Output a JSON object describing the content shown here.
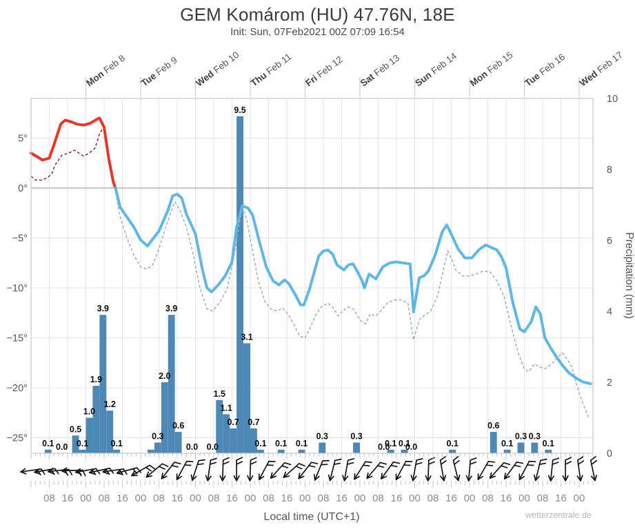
{
  "header": {
    "title": "GEM Komárom (HU) 47.76N, 18E",
    "subtitle": "Init: Sun, 07Feb2021 00Z 07:09 16:54"
  },
  "watermark": "wetterzentrale.de",
  "chart_data": {
    "type": "line",
    "title": "GEM meteogram Komárom (HU)",
    "x_axis": {
      "label": "Local time (UTC+1)",
      "start": "Sun Feb 7 00:00",
      "hours_total": 246,
      "hour_tick_step": 8,
      "tick_label_cycle": [
        "08",
        "16",
        "00"
      ],
      "day_labels": [
        {
          "day": "Mon",
          "date": "Feb 8"
        },
        {
          "day": "Tue",
          "date": "Feb 9"
        },
        {
          "day": "Wed",
          "date": "Feb 10"
        },
        {
          "day": "Thu",
          "date": "Feb 11"
        },
        {
          "day": "Fri",
          "date": "Feb 12"
        },
        {
          "day": "Sat",
          "date": "Feb 13"
        },
        {
          "day": "Sun",
          "date": "Feb 14"
        },
        {
          "day": "Mon",
          "date": "Feb 15"
        },
        {
          "day": "Tue",
          "date": "Feb 16"
        },
        {
          "day": "Wed",
          "date": "Feb 17"
        }
      ]
    },
    "y_left": {
      "unit": "°C",
      "ticks": [
        {
          "v": 5,
          "label": "5°"
        },
        {
          "v": 0,
          "label": "0°"
        },
        {
          "v": -5,
          "label": "−5°"
        },
        {
          "v": -10,
          "label": "−10°"
        },
        {
          "v": -15,
          "label": "−15°"
        },
        {
          "v": -20,
          "label": "−20°"
        },
        {
          "v": -25,
          "label": "−25°"
        }
      ]
    },
    "y_right": {
      "label": "Precipitation (mm)",
      "unit": "mm",
      "ticks": [
        {
          "v": 0,
          "label": "0"
        },
        {
          "v": 2,
          "label": "2"
        },
        {
          "v": 4,
          "label": "4"
        },
        {
          "v": 6,
          "label": "6"
        },
        {
          "v": 8,
          "label": "8"
        },
        {
          "v": 10,
          "label": "10"
        }
      ],
      "range": [
        0,
        10
      ]
    },
    "series": [
      {
        "name": "temperature_2m",
        "unit": "°C",
        "style": "solid",
        "split_at_c": 0,
        "points": [
          [
            0,
            3.5
          ],
          [
            3,
            3.1
          ],
          [
            5,
            2.8
          ],
          [
            8,
            3.0
          ],
          [
            10,
            4.3
          ],
          [
            13,
            6.4
          ],
          [
            15,
            6.8
          ],
          [
            18,
            6.6
          ],
          [
            20,
            6.4
          ],
          [
            23,
            6.3
          ],
          [
            26,
            6.5
          ],
          [
            29,
            6.9
          ],
          [
            30,
            7.0
          ],
          [
            32,
            6.1
          ],
          [
            34,
            3.0
          ],
          [
            36,
            0.6
          ],
          [
            37,
            0.0
          ],
          [
            39,
            -1.9
          ],
          [
            42,
            -2.9
          ],
          [
            45,
            -3.9
          ],
          [
            48,
            -5.2
          ],
          [
            51,
            -5.8
          ],
          [
            53,
            -5.2
          ],
          [
            56,
            -4.3
          ],
          [
            60,
            -2.2
          ],
          [
            62,
            -0.8
          ],
          [
            64,
            -0.6
          ],
          [
            66,
            -1.0
          ],
          [
            68,
            -2.6
          ],
          [
            72,
            -4.6
          ],
          [
            75,
            -8.1
          ],
          [
            77,
            -10.0
          ],
          [
            79,
            -10.4
          ],
          [
            82,
            -9.7
          ],
          [
            85,
            -8.8
          ],
          [
            88,
            -7.4
          ],
          [
            90,
            -3.9
          ],
          [
            92.5,
            -1.8
          ],
          [
            95,
            -2.0
          ],
          [
            97,
            -2.7
          ],
          [
            100,
            -5.4
          ],
          [
            103,
            -7.9
          ],
          [
            106,
            -9.3
          ],
          [
            108.5,
            -9.7
          ],
          [
            111,
            -9.2
          ],
          [
            113,
            -9.6
          ],
          [
            116,
            -10.8
          ],
          [
            118,
            -11.7
          ],
          [
            119.5,
            -11.7
          ],
          [
            122,
            -10.1
          ],
          [
            124,
            -8.4
          ],
          [
            126,
            -6.8
          ],
          [
            128,
            -6.3
          ],
          [
            130,
            -6.2
          ],
          [
            132,
            -6.6
          ],
          [
            134,
            -7.7
          ],
          [
            137,
            -8.2
          ],
          [
            139,
            -7.7
          ],
          [
            141,
            -7.6
          ],
          [
            143,
            -8.4
          ],
          [
            145,
            -9.3
          ],
          [
            146,
            -10.0
          ],
          [
            148,
            -8.6
          ],
          [
            151,
            -9.1
          ],
          [
            154,
            -7.9
          ],
          [
            157,
            -7.5
          ],
          [
            160,
            -7.4
          ],
          [
            163,
            -7.5
          ],
          [
            166,
            -7.6
          ],
          [
            167.5,
            -12.4
          ],
          [
            170,
            -9.0
          ],
          [
            172,
            -8.8
          ],
          [
            174,
            -8.3
          ],
          [
            177,
            -6.7
          ],
          [
            180,
            -4.4
          ],
          [
            182,
            -3.7
          ],
          [
            184,
            -4.6
          ],
          [
            187,
            -6.1
          ],
          [
            190,
            -7.0
          ],
          [
            193,
            -7.0
          ],
          [
            196,
            -6.2
          ],
          [
            199,
            -5.7
          ],
          [
            201,
            -5.9
          ],
          [
            204,
            -6.2
          ],
          [
            206,
            -6.9
          ],
          [
            208,
            -8.0
          ],
          [
            211,
            -11.5
          ],
          [
            214,
            -14.1
          ],
          [
            216,
            -14.4
          ],
          [
            219,
            -13.4
          ],
          [
            221,
            -11.9
          ],
          [
            223,
            -12.6
          ],
          [
            225,
            -15.0
          ],
          [
            227.5,
            -16.0
          ],
          [
            230,
            -16.9
          ],
          [
            232.5,
            -17.7
          ],
          [
            235.5,
            -18.5
          ],
          [
            238.5,
            -19.0
          ],
          [
            241.5,
            -19.4
          ],
          [
            245,
            -19.6
          ]
        ]
      },
      {
        "name": "dew_point",
        "unit": "°C",
        "style": "dashed",
        "split_at_c": 0,
        "points": [
          [
            0,
            1.2
          ],
          [
            2,
            0.8
          ],
          [
            4.5,
            0.8
          ],
          [
            7,
            1.0
          ],
          [
            9,
            1.4
          ],
          [
            10.5,
            2.3
          ],
          [
            13.5,
            3.3
          ],
          [
            16.5,
            3.5
          ],
          [
            19,
            3.8
          ],
          [
            21,
            3.5
          ],
          [
            23,
            3.2
          ],
          [
            25.5,
            3.5
          ],
          [
            28,
            4.0
          ],
          [
            30,
            5.4
          ],
          [
            31.7,
            6.1
          ],
          [
            33,
            4.7
          ],
          [
            35.3,
            1.9
          ],
          [
            36.8,
            0.0
          ],
          [
            39,
            -2.9
          ],
          [
            42,
            -5.0
          ],
          [
            45,
            -6.7
          ],
          [
            48,
            -7.9
          ],
          [
            50.5,
            -8.1
          ],
          [
            53,
            -7.8
          ],
          [
            56,
            -6.1
          ],
          [
            59,
            -3.9
          ],
          [
            62,
            -1.9
          ],
          [
            63,
            -1.4
          ],
          [
            65,
            -2.1
          ],
          [
            68,
            -3.9
          ],
          [
            71,
            -6.6
          ],
          [
            74,
            -10.0
          ],
          [
            77,
            -12.1
          ],
          [
            79.5,
            -12.3
          ],
          [
            82.5,
            -11.5
          ],
          [
            86,
            -10.0
          ],
          [
            89,
            -6.7
          ],
          [
            92,
            -2.6
          ],
          [
            93,
            -2.2
          ],
          [
            94.5,
            -3.2
          ],
          [
            97,
            -6.3
          ],
          [
            99.5,
            -9.3
          ],
          [
            102.5,
            -11.4
          ],
          [
            105.5,
            -12.2
          ],
          [
            108,
            -12.3
          ],
          [
            110,
            -12.0
          ],
          [
            112.5,
            -12.6
          ],
          [
            115,
            -13.6
          ],
          [
            117.5,
            -14.8
          ],
          [
            120,
            -15.0
          ],
          [
            122,
            -14.1
          ],
          [
            124.5,
            -12.8
          ],
          [
            127,
            -11.9
          ],
          [
            130,
            -11.5
          ],
          [
            132,
            -11.9
          ],
          [
            134.5,
            -12.8
          ],
          [
            136.5,
            -12.3
          ],
          [
            139,
            -11.9
          ],
          [
            141,
            -12.1
          ],
          [
            143,
            -12.8
          ],
          [
            144.5,
            -13.3
          ],
          [
            146.5,
            -13.6
          ],
          [
            148.5,
            -12.6
          ],
          [
            151,
            -12.8
          ],
          [
            153.5,
            -12.2
          ],
          [
            156,
            -11.5
          ],
          [
            159,
            -11.2
          ],
          [
            162,
            -11.2
          ],
          [
            165,
            -11.5
          ],
          [
            167.5,
            -15.2
          ],
          [
            170,
            -13.2
          ],
          [
            172,
            -12.8
          ],
          [
            175,
            -12.3
          ],
          [
            178,
            -10.8
          ],
          [
            181,
            -7.7
          ],
          [
            182.5,
            -6.3
          ],
          [
            184,
            -7.0
          ],
          [
            186,
            -8.2
          ],
          [
            189,
            -8.8
          ],
          [
            192,
            -8.8
          ],
          [
            195,
            -8.6
          ],
          [
            198,
            -8.3
          ],
          [
            201,
            -8.4
          ],
          [
            204,
            -9.3
          ],
          [
            207,
            -10.8
          ],
          [
            210,
            -13.6
          ],
          [
            213,
            -16.3
          ],
          [
            216,
            -18.1
          ],
          [
            218,
            -18.4
          ],
          [
            220.5,
            -17.6
          ],
          [
            222.5,
            -17.9
          ],
          [
            225,
            -18.1
          ],
          [
            228,
            -17.6
          ],
          [
            230.5,
            -17.0
          ],
          [
            232.5,
            -16.5
          ],
          [
            235,
            -17.2
          ],
          [
            237,
            -18.0
          ],
          [
            239,
            -19.8
          ],
          [
            241.5,
            -21.5
          ],
          [
            244,
            -22.9
          ]
        ]
      }
    ],
    "precipitation_bars": {
      "unit": "mm",
      "interval_hours": 3,
      "bars": [
        {
          "t": 6,
          "mm": 0.1
        },
        {
          "t": 12,
          "mm": 0.0
        },
        {
          "t": 18,
          "mm": 0.5
        },
        {
          "t": 21,
          "mm": 0.1
        },
        {
          "t": 24,
          "mm": 1.0
        },
        {
          "t": 27,
          "mm": 1.9
        },
        {
          "t": 30,
          "mm": 3.9
        },
        {
          "t": 33,
          "mm": 1.2
        },
        {
          "t": 36,
          "mm": 0.1
        },
        {
          "t": 51,
          "mm": 0.1,
          "label": ""
        },
        {
          "t": 54,
          "mm": 0.3
        },
        {
          "t": 57,
          "mm": 2.0
        },
        {
          "t": 60,
          "mm": 3.9
        },
        {
          "t": 63,
          "mm": 0.6
        },
        {
          "t": 69,
          "mm": 0.0
        },
        {
          "t": 78,
          "mm": 0.0
        },
        {
          "t": 81,
          "mm": 1.5
        },
        {
          "t": 84,
          "mm": 1.1
        },
        {
          "t": 87,
          "mm": 0.7
        },
        {
          "t": 90,
          "mm": 9.5
        },
        {
          "t": 93,
          "mm": 3.1
        },
        {
          "t": 96,
          "mm": 0.7
        },
        {
          "t": 99,
          "mm": 0.1
        },
        {
          "t": 108,
          "mm": 0.1
        },
        {
          "t": 117,
          "mm": 0.1
        },
        {
          "t": 126,
          "mm": 0.3
        },
        {
          "t": 141,
          "mm": 0.3
        },
        {
          "t": 153,
          "mm": 0.0
        },
        {
          "t": 156,
          "mm": 0.1
        },
        {
          "t": 162,
          "mm": 0.1
        },
        {
          "t": 165,
          "mm": 0.0
        },
        {
          "t": 183,
          "mm": 0.1
        },
        {
          "t": 201,
          "mm": 0.6
        },
        {
          "t": 207,
          "mm": 0.1
        },
        {
          "t": 213,
          "mm": 0.3
        },
        {
          "t": 219,
          "mm": 0.3
        },
        {
          "t": 225,
          "mm": 0.1
        }
      ]
    },
    "wind_barbs": {
      "interval_hours": 6,
      "angles_deg": [
        172,
        170,
        174,
        178,
        170,
        168,
        172,
        165,
        150,
        140,
        128,
        118,
        108,
        98,
        92,
        90,
        92,
        118,
        132,
        138,
        128,
        112,
        104,
        100,
        122,
        130,
        126,
        118,
        100,
        92,
        80,
        76,
        95,
        120,
        132,
        126,
        118,
        104,
        96,
        90,
        82,
        78
      ]
    },
    "colors": {
      "temp_above": "#e8362b",
      "temp_below": "#60b7e6",
      "dew_above": "#6b2424",
      "dew_below": "#93a9bd",
      "bar": "#4e88b5",
      "bar_label": "#0a0a0a",
      "grid": "#e3e3e8",
      "zero_line": "#b3b3b3",
      "frame": "#c8c8c8",
      "tick_comb": "#b9c2cd",
      "barb": "#141414",
      "axis_text": "#555555",
      "time_text": "#8a8a8a",
      "day_text": "#3f3f3f"
    }
  }
}
